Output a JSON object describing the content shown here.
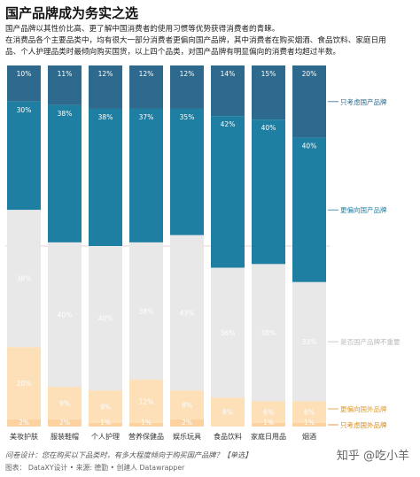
{
  "header": {
    "title": "国产品牌成为务实之选",
    "desc_line1": "国产品牌以其性价比高、更了解中国消费者的使用习惯等优势获得消费者的青睐。",
    "desc_line2": "在消费品各个主要品类中，均有很大一部分消费者更偏向国产品牌，其中消费者在购买烟酒、食品饮料、家庭日用",
    "desc_line3": "品、个人护理品类时最倾向购买国货，以上四个品类，对国产品牌有明显偏向的消费者均超过半数。"
  },
  "footer": {
    "question": "问卷设计：您在购买以下品类时，有多大程度倾向于购买国产品牌？【单选】",
    "source": "图表： DataXY设计 • 来源: 德勤 • 创建人 Datawrapper",
    "watermark": "知乎 @吃小羊"
  },
  "colors": {
    "only_domestic": "#2d6a8e",
    "prefer_domestic": "#1f7fa3",
    "neutral": "#e8e8e8",
    "prefer_foreign": "#fde0b8",
    "only_foreign": "#fbd2a0",
    "legend_only_domestic": "#2d6a8e",
    "legend_prefer_domestic": "#1f7fa3",
    "legend_neutral": "#bbbbbb",
    "legend_prefer_foreign": "#e09a2c",
    "legend_only_foreign": "#d98a1c"
  },
  "chart_data": {
    "type": "bar",
    "stacked": true,
    "orientation": "vertical",
    "categories": [
      "美妆护肤",
      "服装鞋帽",
      "个人护理",
      "营养保健品",
      "娱乐玩具",
      "食品饮料",
      "家庭日用品",
      "烟酒"
    ],
    "series": [
      {
        "name": "只考虑国产品牌",
        "values": [
          10,
          11,
          12,
          12,
          12,
          14,
          15,
          20
        ],
        "labels": [
          "10%",
          "11%",
          "12%",
          "12%",
          "12%",
          "14%",
          "15%",
          "20%"
        ]
      },
      {
        "name": "更偏向国产品牌",
        "values": [
          30,
          38,
          38,
          37,
          35,
          42,
          40,
          40
        ],
        "labels": [
          "30%",
          "38%",
          "38%",
          "37%",
          "35%",
          "42%",
          "40%",
          "40%"
        ]
      },
      {
        "name": "是否国产品牌不重要",
        "values": [
          38,
          40,
          40,
          38,
          43,
          36,
          38,
          33
        ],
        "labels": [
          "38%",
          "40%",
          "40%",
          "38%",
          "43%",
          "36%",
          "38%",
          "33%"
        ]
      },
      {
        "name": "更偏向国外品牌",
        "values": [
          20,
          9,
          9,
          12,
          8,
          8,
          6,
          6
        ],
        "labels": [
          "20%",
          "9%",
          "9%",
          "12%",
          "8%",
          "8%",
          "6%",
          "6%"
        ]
      },
      {
        "name": "只考虑国外品牌",
        "values": [
          2,
          2,
          1,
          1,
          2,
          0,
          1,
          1
        ],
        "labels": [
          "2%",
          "2%",
          "1%",
          "1%",
          "2%",
          "",
          "1%",
          "1%"
        ]
      }
    ],
    "ylim": [
      0,
      100
    ],
    "legend_position": "right"
  }
}
